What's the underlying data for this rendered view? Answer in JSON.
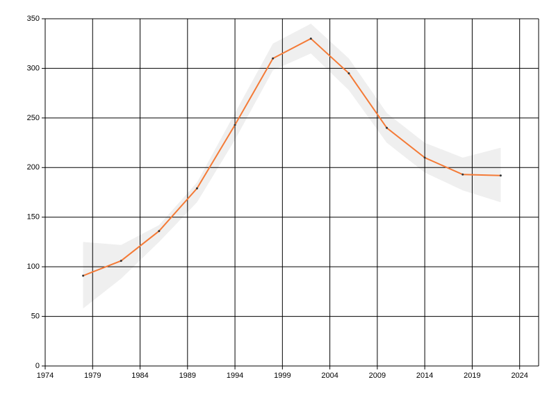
{
  "chart_data": {
    "type": "line",
    "x": [
      1978,
      1982,
      1986,
      1990,
      1994,
      1998,
      2002,
      2006,
      2010,
      2014,
      2018,
      2022
    ],
    "series": [
      {
        "color": "#f47a36",
        "values": [
          91,
          106,
          136,
          179,
          243,
          310,
          330,
          295,
          240,
          210,
          193,
          192
        ]
      }
    ],
    "band": {
      "color": "#efefef",
      "upper": [
        125,
        122,
        142,
        185,
        255,
        325,
        345,
        310,
        255,
        225,
        210,
        220
      ],
      "lower": [
        58,
        88,
        125,
        165,
        228,
        298,
        315,
        278,
        225,
        195,
        177,
        165
      ]
    },
    "xlim": [
      1974,
      2026
    ],
    "xticks": [
      1974,
      1979,
      1984,
      1989,
      1994,
      1999,
      2004,
      2009,
      2014,
      2019,
      2024
    ],
    "ylim": [
      0,
      350
    ],
    "yticks": [
      0,
      50,
      100,
      150,
      200,
      250,
      300,
      350
    ],
    "grid": true
  }
}
